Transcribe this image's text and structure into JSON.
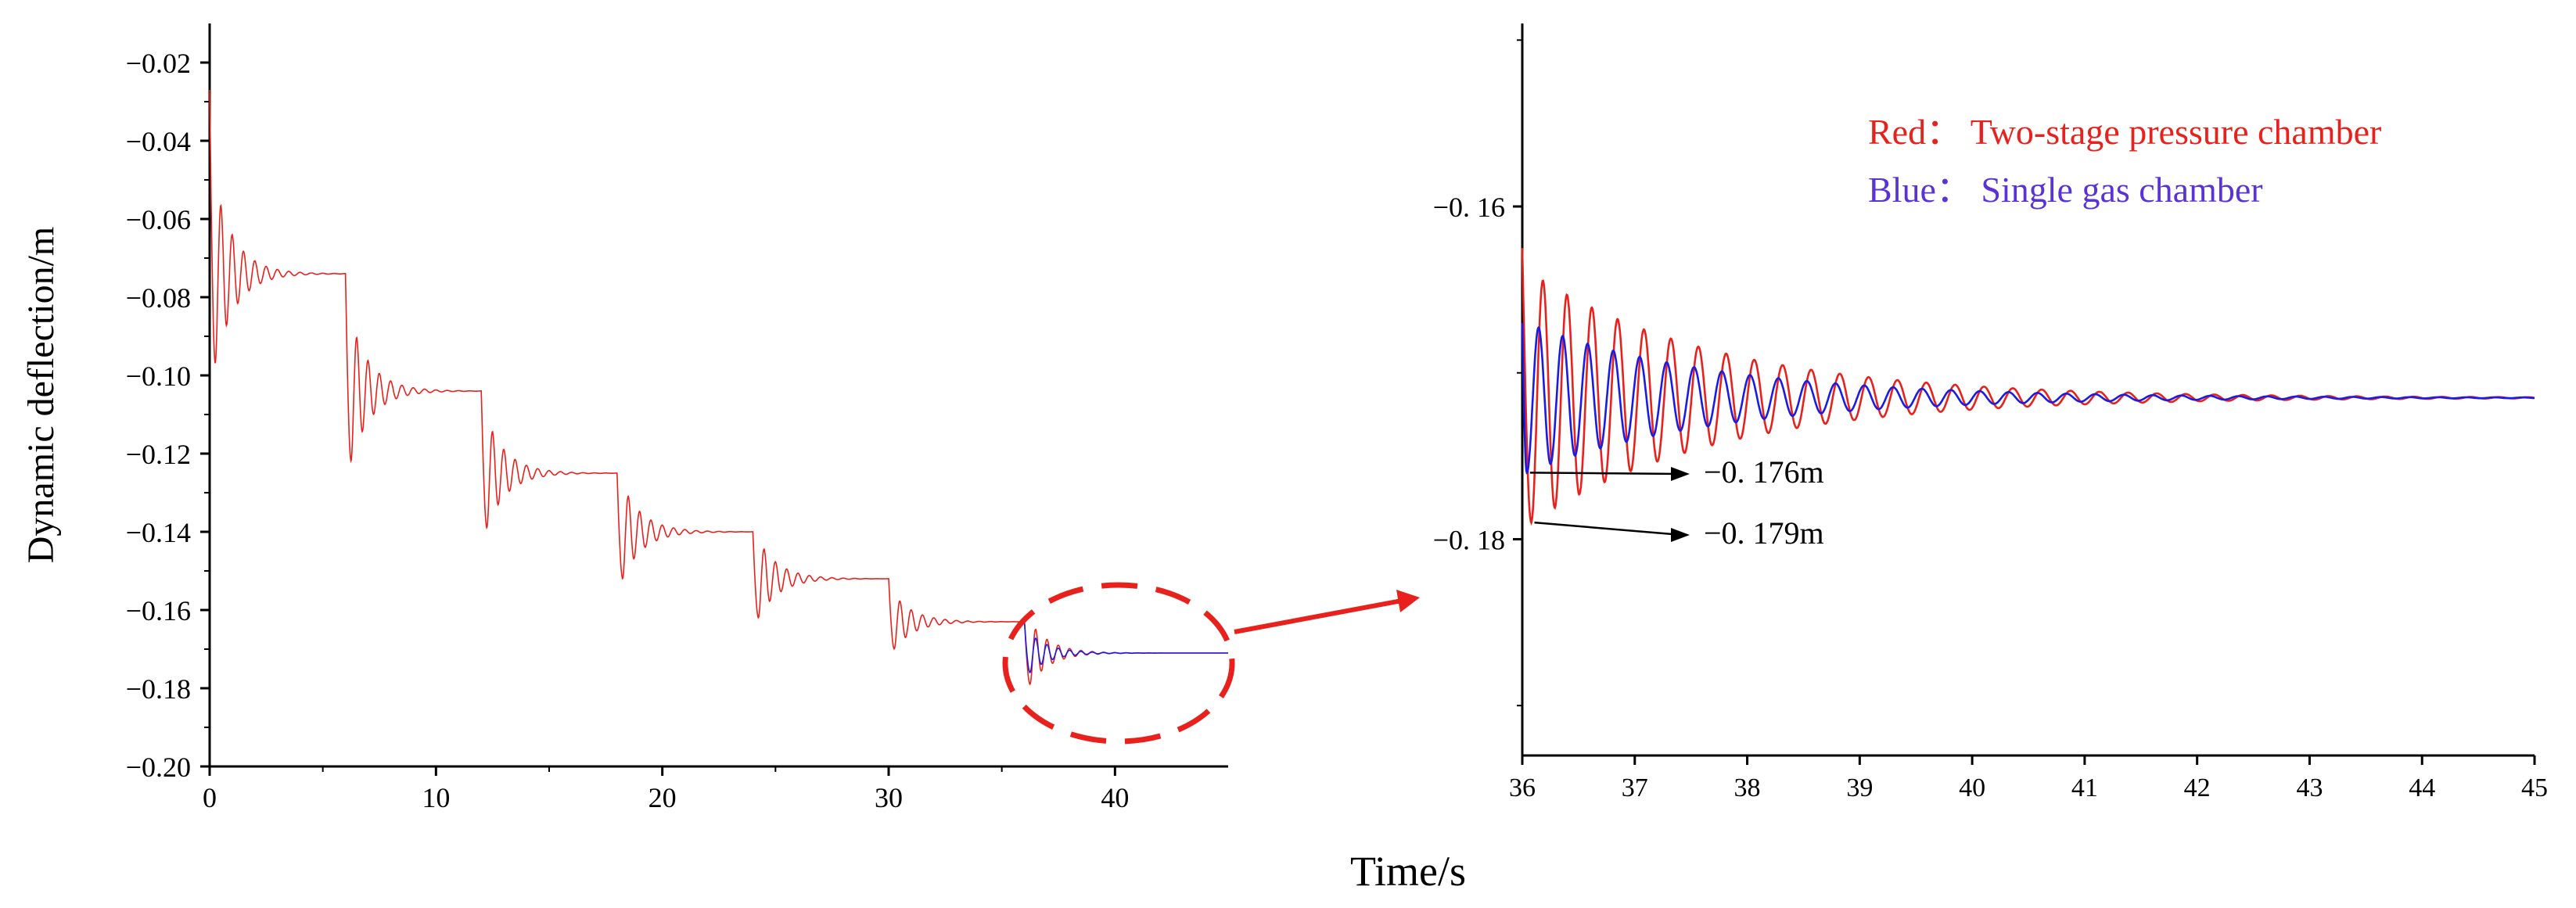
{
  "figure": {
    "ylabel": "Dynamic deflection/m",
    "xlabel": "Time/s",
    "callout_colour": "#e8211c"
  },
  "chart_data": [
    {
      "type": "line",
      "panel": "main",
      "ylabel": "Dynamic deflection/m",
      "xlabel": "Time/s",
      "xlim": [
        0,
        45
      ],
      "ylim": [
        -0.2,
        -0.01
      ],
      "x_ticks": [
        0,
        10,
        20,
        30,
        40
      ],
      "x_tick_labels": [
        "0",
        "10",
        "20",
        "30",
        "40"
      ],
      "y_ticks": [
        -0.02,
        -0.04,
        -0.06,
        -0.08,
        -0.1,
        -0.12,
        -0.14,
        -0.16,
        -0.18,
        -0.2
      ],
      "y_tick_labels": [
        "−0.02",
        "−0.04",
        "−0.06",
        "−0.08",
        "−0.10",
        "−0.12",
        "−0.14",
        "−0.16",
        "−0.18",
        "−0.20"
      ],
      "grid": false,
      "legend": "none",
      "series": [
        {
          "color": "#e8211c",
          "style": "damped stepped response",
          "load_steps": [
            {
              "t_start": 0,
              "t_end": 6,
              "initial": -0.027,
              "peak": -0.097,
              "settled": -0.074
            },
            {
              "t_start": 6,
              "t_end": 12,
              "initial": -0.074,
              "peak": -0.122,
              "settled": -0.104
            },
            {
              "t_start": 12,
              "t_end": 18,
              "initial": -0.104,
              "peak": -0.139,
              "settled": -0.125
            },
            {
              "t_start": 18,
              "t_end": 24,
              "initial": -0.125,
              "peak": -0.152,
              "settled": -0.14
            },
            {
              "t_start": 24,
              "t_end": 30,
              "initial": -0.14,
              "peak": -0.162,
              "settled": -0.152
            },
            {
              "t_start": 30,
              "t_end": 36,
              "initial": -0.152,
              "peak": -0.17,
              "settled": -0.163
            },
            {
              "t_start": 36,
              "t_end": 45,
              "initial": -0.163,
              "peak": -0.179,
              "settled": -0.171
            }
          ]
        },
        {
          "color": "#1b1be6",
          "style": "damped step, final stage only",
          "load_steps": [
            {
              "t_start": 36,
              "t_end": 45,
              "initial": -0.163,
              "peak": -0.176,
              "settled": -0.171
            }
          ]
        }
      ],
      "annotation": "dashed ellipse around t = 36–45 with arrow pointing to zoom panel"
    },
    {
      "type": "line",
      "panel": "zoom",
      "xlim": [
        36,
        45
      ],
      "ylim": [
        -0.193,
        -0.149
      ],
      "x_ticks": [
        36,
        37,
        38,
        39,
        40,
        41,
        42,
        43,
        44,
        45
      ],
      "x_tick_labels": [
        "36",
        "37",
        "38",
        "39",
        "40",
        "41",
        "42",
        "43",
        "44",
        "45"
      ],
      "y_ticks": [
        -0.16,
        -0.18
      ],
      "y_tick_labels": [
        "−0. 16",
        "−0. 18"
      ],
      "grid": false,
      "legend": "top-right",
      "legend_entries": [
        {
          "label": "Red： Two-stage pressure chamber",
          "color": "#e8211c"
        },
        {
          "label": "Blue： Single gas chamber",
          "color": "#5a33d6"
        }
      ],
      "series": [
        {
          "name": "Two-stage pressure chamber",
          "color": "#e8211c",
          "start": -0.1625,
          "min": -0.179,
          "t_min": 36.08,
          "settled": -0.1715,
          "period": 0.25,
          "decay": 0.6
        },
        {
          "name": "Single gas chamber",
          "color": "#1b1be6",
          "start": -0.167,
          "min": -0.176,
          "t_min": 36.04,
          "settled": -0.1715,
          "period": 0.25,
          "decay": 0.6
        }
      ],
      "annotations": [
        {
          "text": "−0. 176m",
          "x": 36.04,
          "y": -0.176
        },
        {
          "text": "−0. 179m",
          "x": 36.08,
          "y": -0.179
        }
      ]
    }
  ]
}
